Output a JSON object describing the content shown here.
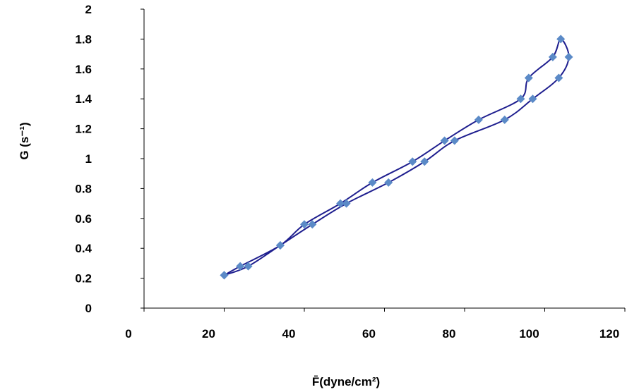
{
  "chart_data": {
    "type": "scatter",
    "ylabel": "G (s⁻¹)",
    "xlabel": "F̄(dyne/cm²)",
    "xlim": [
      0,
      120
    ],
    "ylim": [
      0,
      2
    ],
    "x_ticks": [
      0,
      20,
      40,
      60,
      80,
      100,
      120
    ],
    "y_ticks": [
      0,
      0.2,
      0.4,
      0.6,
      0.8,
      1,
      1.2,
      1.4,
      1.6,
      1.8,
      2
    ],
    "y_tick_labels": [
      "0",
      "0.2",
      "0.4",
      "0.6",
      "0.8",
      "1",
      "1.2",
      "1.4",
      "1.6",
      "1.8",
      "2"
    ],
    "grid": false,
    "colors": {
      "line": "#1f1f8f",
      "marker": "#5b8ac7"
    },
    "series": [
      {
        "marker": "diamond",
        "smooth": true,
        "x": [
          20,
          24,
          34,
          40,
          49,
          57,
          67,
          75,
          83.5,
          94,
          96,
          102,
          104,
          106,
          103.5,
          97,
          90,
          77.5,
          70,
          61,
          50.5,
          42,
          34,
          26,
          20
        ],
        "y": [
          0.22,
          0.28,
          0.42,
          0.56,
          0.7,
          0.84,
          0.98,
          1.12,
          1.26,
          1.4,
          1.54,
          1.68,
          1.8,
          1.68,
          1.54,
          1.4,
          1.26,
          1.12,
          0.98,
          0.84,
          0.7,
          0.56,
          0.42,
          0.28,
          0.22
        ]
      }
    ]
  }
}
